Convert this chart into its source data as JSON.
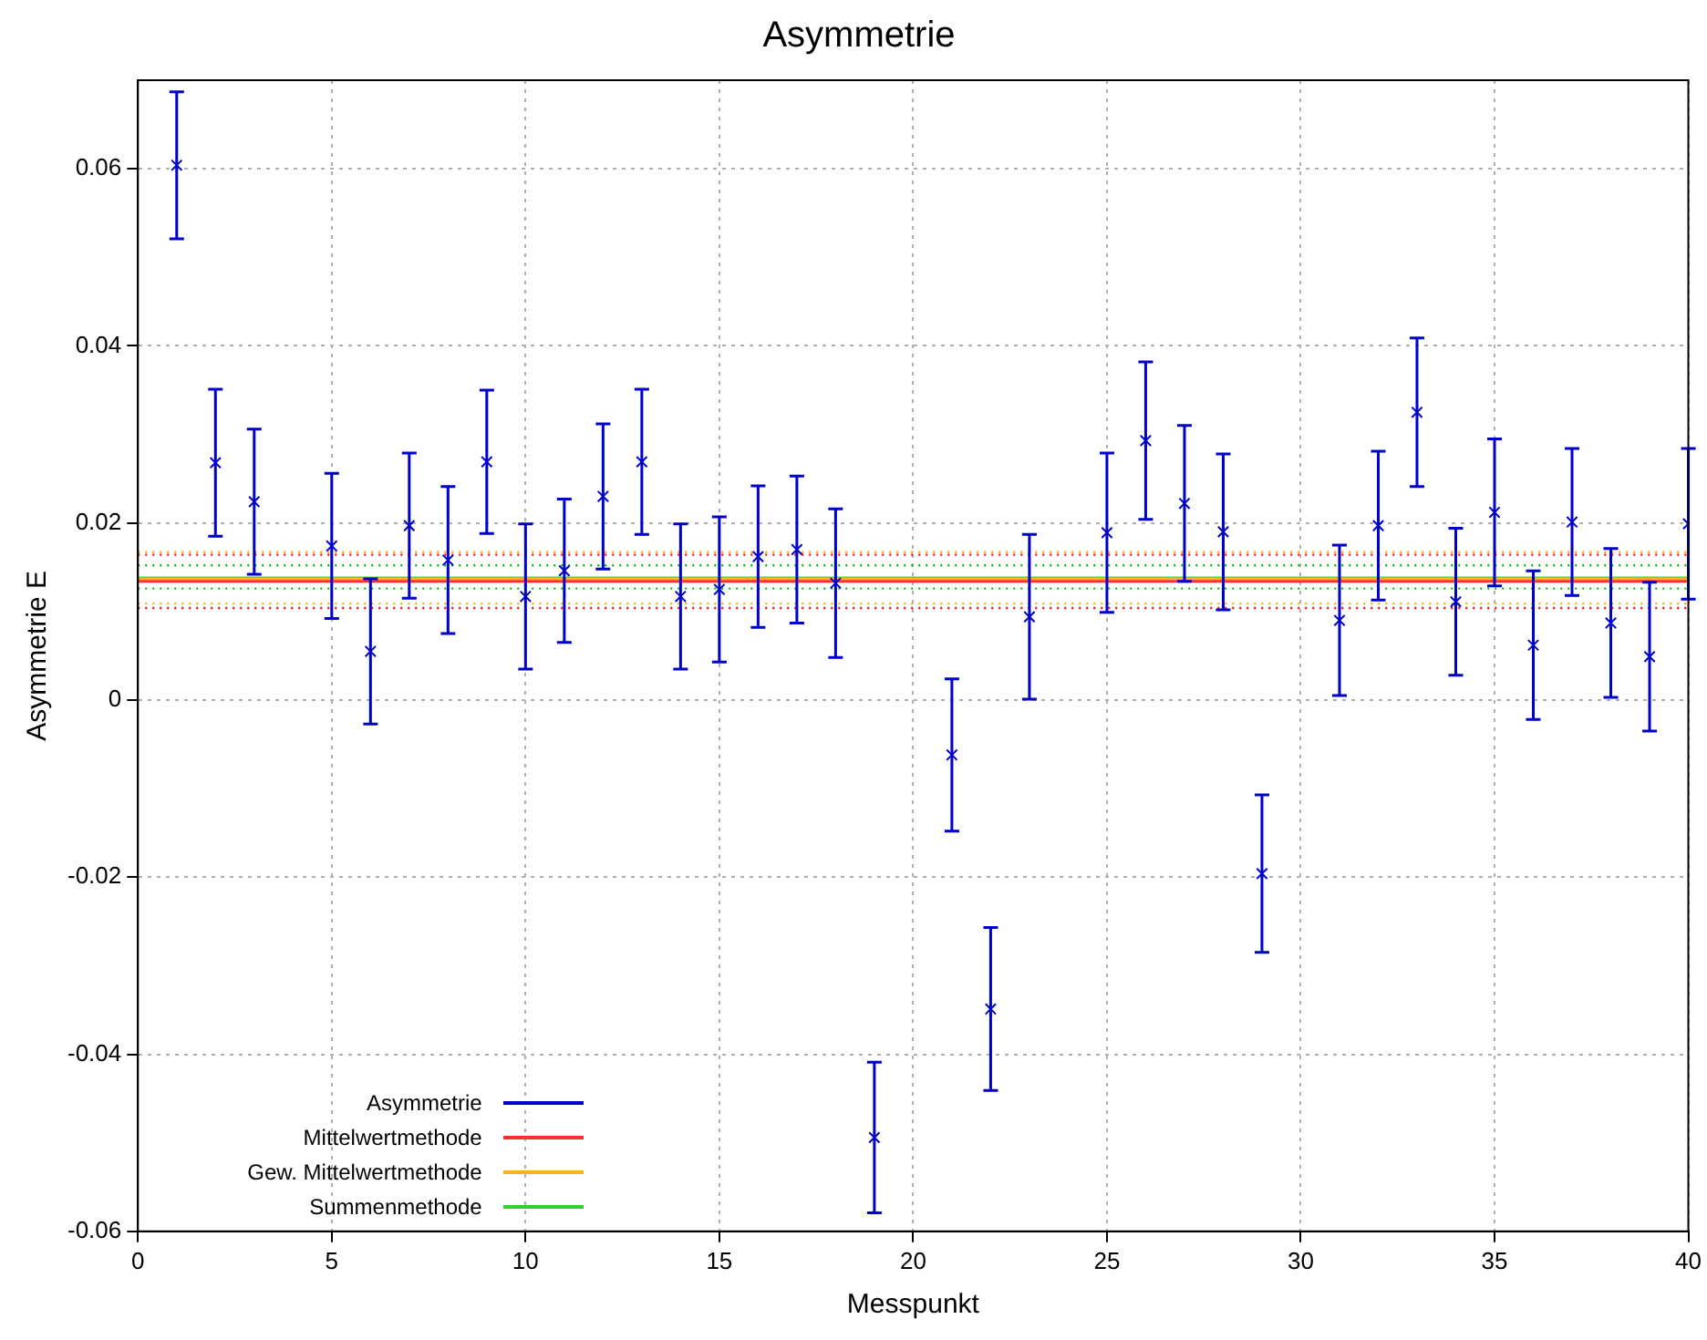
{
  "chart_data": {
    "type": "scatter",
    "title": "Asymmetrie",
    "xlabel": "Messpunkt",
    "ylabel": "Asymmetrie E",
    "xlim": [
      0,
      40
    ],
    "xticks": [
      0,
      5,
      10,
      15,
      20,
      25,
      30,
      35,
      40
    ],
    "ylim": [
      -0.06,
      0.07
    ],
    "yticks": [
      -0.06,
      -0.04,
      -0.02,
      0,
      0.02,
      0.04,
      0.06
    ],
    "grid": true,
    "legend": "bottom left",
    "series": [
      {
        "name": "Asymmetrie",
        "marker": "cross",
        "color": "#0000cc",
        "x": [
          1,
          2,
          3,
          5,
          6,
          7,
          8,
          9,
          10,
          11,
          12,
          13,
          14,
          15,
          16,
          17,
          18,
          19,
          21,
          22,
          23,
          25,
          26,
          27,
          28,
          29,
          31,
          32,
          33,
          34,
          35,
          36,
          37,
          38,
          39,
          40
        ],
        "values": [
          0.0604,
          0.0268,
          0.0224,
          0.0174,
          0.0055,
          0.0197,
          0.0158,
          0.0269,
          0.0117,
          0.0146,
          0.023,
          0.0269,
          0.0117,
          0.0125,
          0.0162,
          0.017,
          0.0132,
          -0.0494,
          -0.0062,
          -0.0349,
          0.0094,
          0.0189,
          0.0293,
          0.0222,
          0.019,
          -0.0196,
          0.009,
          0.0197,
          0.0325,
          0.0111,
          0.0212,
          0.0062,
          0.0201,
          0.0087,
          0.0049,
          0.0199
        ],
        "errors": [
          0.0083,
          0.0083,
          0.0082,
          0.0082,
          0.0082,
          0.0082,
          0.0083,
          0.0081,
          0.0082,
          0.0081,
          0.0082,
          0.0082,
          0.0082,
          0.0082,
          0.008,
          0.0083,
          0.0084,
          0.0085,
          0.0086,
          0.0092,
          0.0093,
          0.009,
          0.0089,
          0.0088,
          0.0088,
          0.0089,
          0.0085,
          0.0084,
          0.0084,
          0.0083,
          0.0083,
          0.0084,
          0.0083,
          0.0084,
          0.0084,
          0.0085
        ]
      },
      {
        "name": "Mittelwertmethode",
        "type": "line",
        "color": "#ff3030",
        "x": [
          0,
          40
        ],
        "values": [
          0.0134,
          0.0134
        ]
      },
      {
        "name": "Gew. Mittelwertmethode",
        "type": "line",
        "color": "#ffb020",
        "x": [
          0,
          40
        ],
        "values": [
          0.0137,
          0.0137
        ]
      },
      {
        "name": "Summenmethode",
        "type": "line",
        "color": "#30d030",
        "x": [
          0,
          40
        ],
        "values": [
          0.0138,
          0.0138
        ]
      }
    ],
    "ref_lines": [
      {
        "axis": "y",
        "value": 0.0164,
        "color": "#ff0000",
        "line_style": "dotted"
      },
      {
        "axis": "y",
        "value": 0.0104,
        "color": "#ff0000",
        "line_style": "dotted"
      },
      {
        "axis": "y",
        "value": 0.0167,
        "color": "#ffa500",
        "line_style": "dotted"
      },
      {
        "axis": "y",
        "value": 0.0109,
        "color": "#ffa500",
        "line_style": "dotted"
      },
      {
        "axis": "y",
        "value": 0.0152,
        "color": "#00c000",
        "line_style": "dotted"
      },
      {
        "axis": "y",
        "value": 0.0126,
        "color": "#00c000",
        "line_style": "dotted"
      }
    ]
  }
}
